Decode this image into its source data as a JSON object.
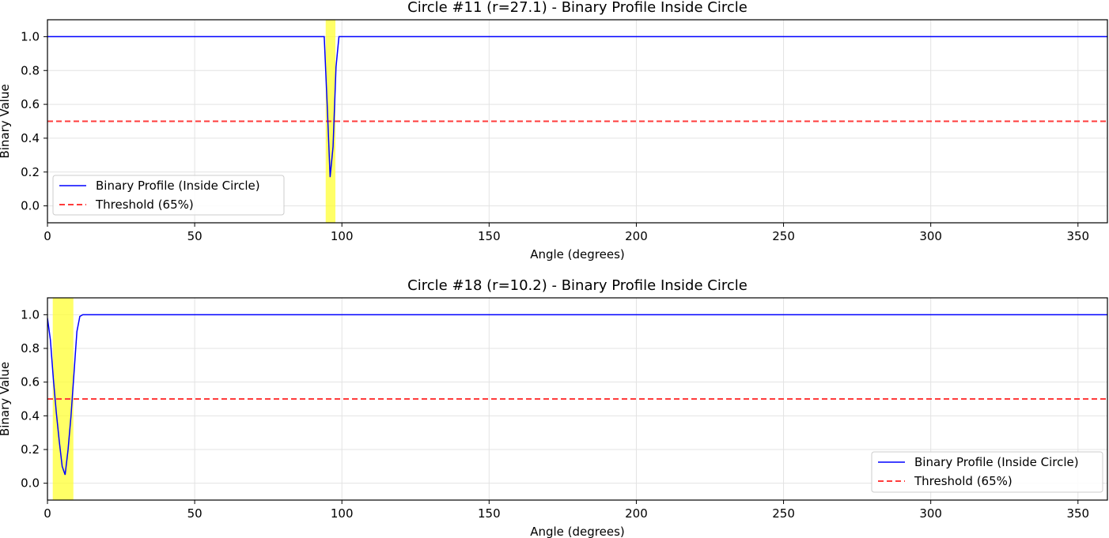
{
  "chart_data": [
    {
      "type": "line",
      "title": "Circle #11 (r=27.1) - Binary Profile Inside Circle",
      "xlabel": "Angle (degrees)",
      "ylabel": "Binary Value",
      "xlim": [
        0,
        360
      ],
      "ylim": [
        -0.1,
        1.1
      ],
      "xticks": [
        0,
        50,
        100,
        150,
        200,
        250,
        300,
        350
      ],
      "yticks": [
        0.0,
        0.2,
        0.4,
        0.6,
        0.8,
        1.0
      ],
      "grid": true,
      "legend_position": "lower-left",
      "highlight_span": [
        94.5,
        97.8
      ],
      "threshold": {
        "name": "Threshold (65%)",
        "y": 0.5,
        "color": "#ff3b3b"
      },
      "series": [
        {
          "name": "Binary Profile (Inside Circle)",
          "color": "#0000ff",
          "x": [
            0,
            94,
            95,
            96,
            97,
            98,
            99,
            360
          ],
          "y": [
            1.0,
            1.0,
            0.6,
            0.17,
            0.35,
            0.82,
            1.0,
            1.0
          ]
        }
      ]
    },
    {
      "type": "line",
      "title": "Circle #18 (r=10.2) - Binary Profile Inside Circle",
      "xlabel": "Angle (degrees)",
      "ylabel": "Binary Value",
      "xlim": [
        0,
        360
      ],
      "ylim": [
        -0.1,
        1.1
      ],
      "xticks": [
        0,
        50,
        100,
        150,
        200,
        250,
        300,
        350
      ],
      "yticks": [
        0.0,
        0.2,
        0.4,
        0.6,
        0.8,
        1.0
      ],
      "grid": true,
      "legend_position": "lower-right",
      "highlight_span": [
        1.8,
        8.8
      ],
      "threshold": {
        "name": "Threshold (65%)",
        "y": 0.5,
        "color": "#ff3b3b"
      },
      "series": [
        {
          "name": "Binary Profile (Inside Circle)",
          "color": "#0000ff",
          "x": [
            0,
            1,
            2,
            3,
            4,
            5,
            6,
            7,
            8,
            9,
            10,
            11,
            12,
            13,
            360
          ],
          "y": [
            0.98,
            0.85,
            0.62,
            0.42,
            0.25,
            0.1,
            0.05,
            0.2,
            0.4,
            0.65,
            0.9,
            0.99,
            1.0,
            1.0,
            1.0
          ]
        }
      ]
    }
  ]
}
